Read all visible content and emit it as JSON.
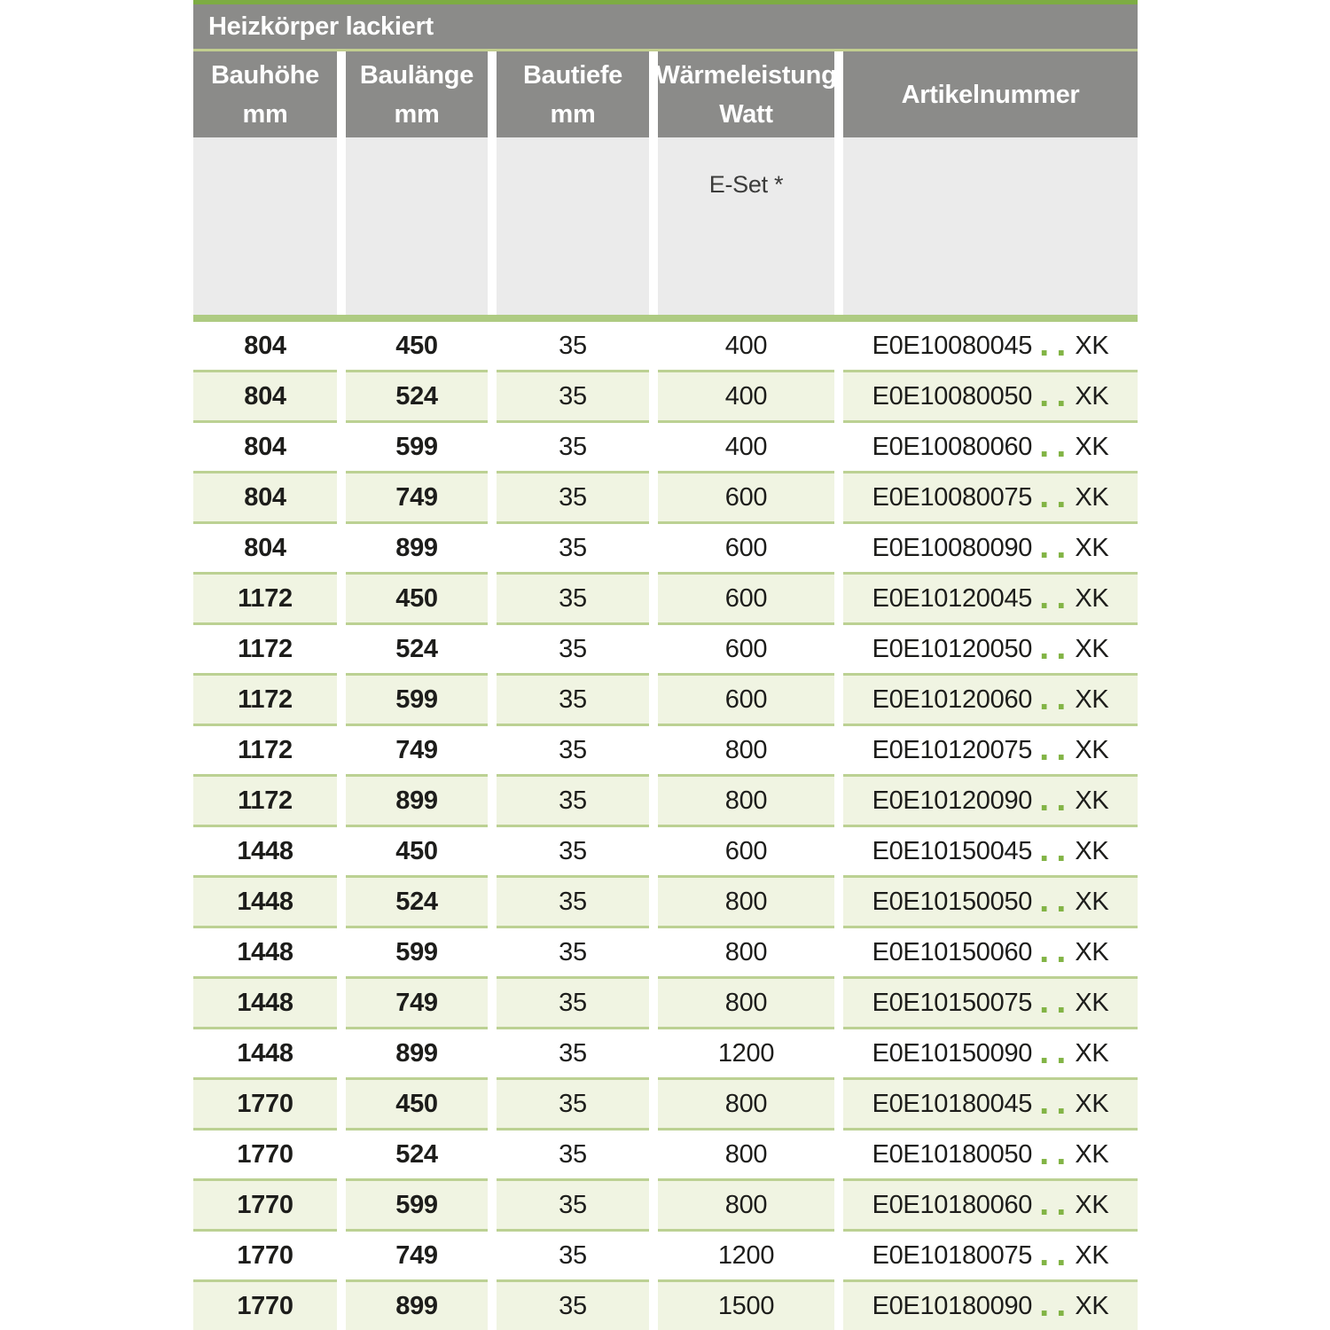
{
  "table": {
    "title": "Heizkörper lackiert",
    "columns": [
      {
        "label": "Bauhöhe",
        "sub": "mm"
      },
      {
        "label": "Baulänge",
        "sub": "mm"
      },
      {
        "label": "Bautiefe",
        "sub": "mm"
      },
      {
        "label": "Wärmeleistung",
        "sub": "Watt"
      },
      {
        "label": "Artikelnummer",
        "sub": ""
      }
    ],
    "eset_label": "E-Set *",
    "artikel_dots": "..",
    "artikel_suffix": "XK",
    "rows": [
      {
        "bauhoehe": "804",
        "baulaenge": "450",
        "bautiefe": "35",
        "watt": "400",
        "artikel": "E0E10080045"
      },
      {
        "bauhoehe": "804",
        "baulaenge": "524",
        "bautiefe": "35",
        "watt": "400",
        "artikel": "E0E10080050"
      },
      {
        "bauhoehe": "804",
        "baulaenge": "599",
        "bautiefe": "35",
        "watt": "400",
        "artikel": "E0E10080060"
      },
      {
        "bauhoehe": "804",
        "baulaenge": "749",
        "bautiefe": "35",
        "watt": "600",
        "artikel": "E0E10080075"
      },
      {
        "bauhoehe": "804",
        "baulaenge": "899",
        "bautiefe": "35",
        "watt": "600",
        "artikel": "E0E10080090"
      },
      {
        "bauhoehe": "1172",
        "baulaenge": "450",
        "bautiefe": "35",
        "watt": "600",
        "artikel": "E0E10120045"
      },
      {
        "bauhoehe": "1172",
        "baulaenge": "524",
        "bautiefe": "35",
        "watt": "600",
        "artikel": "E0E10120050"
      },
      {
        "bauhoehe": "1172",
        "baulaenge": "599",
        "bautiefe": "35",
        "watt": "600",
        "artikel": "E0E10120060"
      },
      {
        "bauhoehe": "1172",
        "baulaenge": "749",
        "bautiefe": "35",
        "watt": "800",
        "artikel": "E0E10120075"
      },
      {
        "bauhoehe": "1172",
        "baulaenge": "899",
        "bautiefe": "35",
        "watt": "800",
        "artikel": "E0E10120090"
      },
      {
        "bauhoehe": "1448",
        "baulaenge": "450",
        "bautiefe": "35",
        "watt": "600",
        "artikel": "E0E10150045"
      },
      {
        "bauhoehe": "1448",
        "baulaenge": "524",
        "bautiefe": "35",
        "watt": "800",
        "artikel": "E0E10150050"
      },
      {
        "bauhoehe": "1448",
        "baulaenge": "599",
        "bautiefe": "35",
        "watt": "800",
        "artikel": "E0E10150060"
      },
      {
        "bauhoehe": "1448",
        "baulaenge": "749",
        "bautiefe": "35",
        "watt": "800",
        "artikel": "E0E10150075"
      },
      {
        "bauhoehe": "1448",
        "baulaenge": "899",
        "bautiefe": "35",
        "watt": "1200",
        "artikel": "E0E10150090"
      },
      {
        "bauhoehe": "1770",
        "baulaenge": "450",
        "bautiefe": "35",
        "watt": "800",
        "artikel": "E0E10180045"
      },
      {
        "bauhoehe": "1770",
        "baulaenge": "524",
        "bautiefe": "35",
        "watt": "800",
        "artikel": "E0E10180050"
      },
      {
        "bauhoehe": "1770",
        "baulaenge": "599",
        "bautiefe": "35",
        "watt": "800",
        "artikel": "E0E10180060"
      },
      {
        "bauhoehe": "1770",
        "baulaenge": "749",
        "bautiefe": "35",
        "watt": "1200",
        "artikel": "E0E10180075"
      },
      {
        "bauhoehe": "1770",
        "baulaenge": "899",
        "bautiefe": "35",
        "watt": "1500",
        "artikel": "E0E10180090"
      }
    ],
    "colors": {
      "accent_green": "#7dac43",
      "thin_line_green": "#c2ce8f",
      "thick_bar_green": "#aecb82",
      "row_border_green": "#bcd193",
      "row_bg_green": "#f0f4e2",
      "header_gray": "#8b8b89",
      "subheader_gray": "#ebebeb",
      "dot_green": "#82b445",
      "text_dark": "#1d1d1b"
    }
  }
}
